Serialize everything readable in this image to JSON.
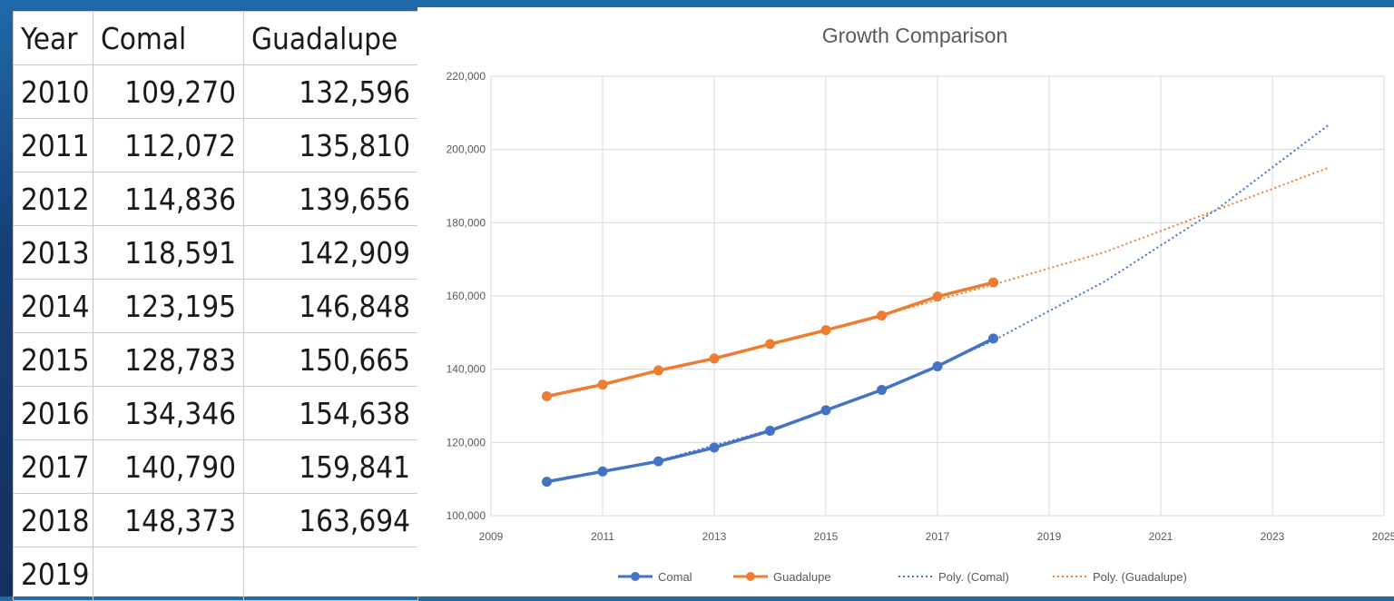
{
  "table": {
    "headers": [
      "Year",
      "Comal",
      "Guadalupe"
    ],
    "rows": [
      [
        "2010",
        "109,270",
        "132,596"
      ],
      [
        "2011",
        "112,072",
        "135,810"
      ],
      [
        "2012",
        "114,836",
        "139,656"
      ],
      [
        "2013",
        "118,591",
        "142,909"
      ],
      [
        "2014",
        "123,195",
        "146,848"
      ],
      [
        "2015",
        "128,783",
        "150,665"
      ],
      [
        "2016",
        "134,346",
        "154,638"
      ],
      [
        "2017",
        "140,790",
        "159,841"
      ],
      [
        "2018",
        "148,373",
        "163,694"
      ],
      [
        "2019",
        "",
        ""
      ]
    ]
  },
  "chart_data": {
    "type": "line",
    "title": "Growth Comparison",
    "xlabel": "",
    "ylabel": "",
    "xlim": [
      2009,
      2025
    ],
    "ylim": [
      100000,
      220000
    ],
    "xticks": [
      2009,
      2011,
      2013,
      2015,
      2017,
      2019,
      2021,
      2023,
      2025
    ],
    "xtick_labels": [
      "2009",
      "2011",
      "2013",
      "2015",
      "2017",
      "2019",
      "2021",
      "2023",
      "2025"
    ],
    "yticks": [
      100000,
      120000,
      140000,
      160000,
      180000,
      200000,
      220000
    ],
    "ytick_labels": [
      "100,000",
      "120,000",
      "140,000",
      "160,000",
      "180,000",
      "200,000",
      "220,000"
    ],
    "grid": true,
    "legend_position": "bottom",
    "series": [
      {
        "name": "Comal",
        "color": "#4472c4",
        "style": "solid-marker",
        "x": [
          2010,
          2011,
          2012,
          2013,
          2014,
          2015,
          2016,
          2017,
          2018
        ],
        "y": [
          109270,
          112072,
          114836,
          118591,
          123195,
          128783,
          134346,
          140790,
          148373
        ]
      },
      {
        "name": "Guadalupe",
        "color": "#ed7d31",
        "style": "solid-marker",
        "x": [
          2010,
          2011,
          2012,
          2013,
          2014,
          2015,
          2016,
          2017,
          2018
        ],
        "y": [
          132596,
          135810,
          139656,
          142909,
          146848,
          150665,
          154638,
          159841,
          163694
        ]
      },
      {
        "name": "Poly. (Comal)",
        "color": "#4472c4",
        "style": "dotted",
        "x": [
          2010,
          2012,
          2014,
          2016,
          2018,
          2020,
          2022,
          2024
        ],
        "y": [
          109200,
          115000,
          123400,
          134300,
          147800,
          164000,
          183600,
          206600
        ]
      },
      {
        "name": "Poly. (Guadalupe)",
        "color": "#ed7d31",
        "style": "dotted",
        "x": [
          2010,
          2012,
          2014,
          2016,
          2018,
          2020,
          2022,
          2024
        ],
        "y": [
          132500,
          139500,
          146800,
          154700,
          163100,
          172000,
          183500,
          195000
        ]
      }
    ]
  }
}
